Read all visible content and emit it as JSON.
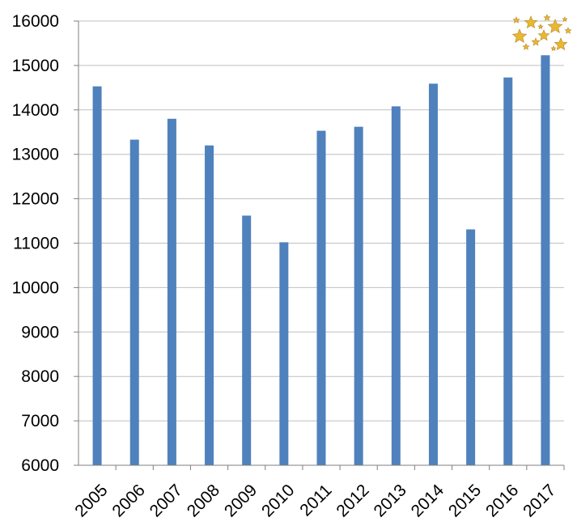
{
  "chart_data": {
    "type": "bar",
    "title": "",
    "xlabel": "",
    "ylabel": "",
    "categories": [
      "2005",
      "2006",
      "2007",
      "2008",
      "2009",
      "2010",
      "2011",
      "2012",
      "2013",
      "2014",
      "2015",
      "2016",
      "2017"
    ],
    "values": [
      14530,
      13330,
      13800,
      13200,
      11620,
      11020,
      13530,
      13620,
      14080,
      14590,
      11310,
      14730,
      15230
    ],
    "ylim": [
      6000,
      16000
    ],
    "yticks": [
      6000,
      7000,
      8000,
      9000,
      10000,
      11000,
      12000,
      13000,
      14000,
      15000,
      16000
    ],
    "grid": true,
    "legend": "none",
    "bar_color": "#4f81bd",
    "decoration": "gold-stars-icon"
  }
}
